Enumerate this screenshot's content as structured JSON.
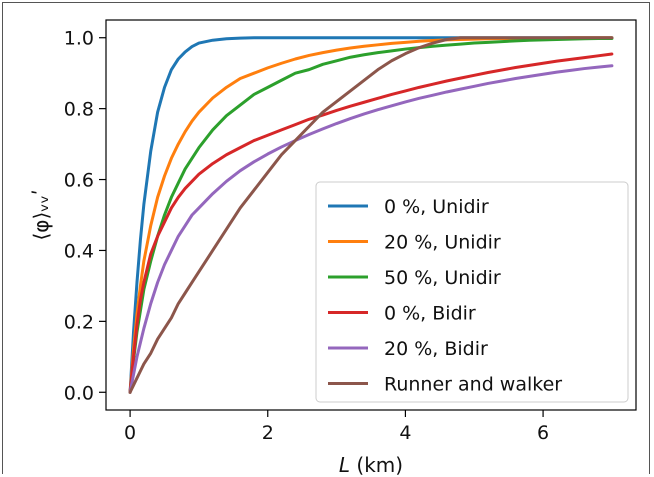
{
  "chart_data": {
    "type": "line",
    "title": "",
    "xlabel_var": "L",
    "xlabel_unit": " (km)",
    "ylabel": "⟨φ⟩ᵥᵥʹ",
    "xlim": [
      -0.35,
      7.35
    ],
    "ylim": [
      -0.05,
      1.05
    ],
    "xticks": [
      0,
      2,
      4,
      6
    ],
    "yticks": [
      0.0,
      0.2,
      0.4,
      0.6,
      0.8,
      1.0
    ],
    "xtick_labels": [
      "0",
      "2",
      "4",
      "6"
    ],
    "ytick_labels": [
      "0.0",
      "0.2",
      "0.4",
      "0.6",
      "0.8",
      "1.0"
    ],
    "grid": false,
    "legend_position": "lower-right",
    "x": [
      0,
      0.05,
      0.1,
      0.15,
      0.2,
      0.3,
      0.4,
      0.5,
      0.6,
      0.7,
      0.8,
      0.9,
      1.0,
      1.2,
      1.4,
      1.6,
      1.8,
      2.0,
      2.2,
      2.4,
      2.6,
      2.8,
      3.0,
      3.2,
      3.4,
      3.6,
      3.8,
      4.0,
      4.2,
      4.4,
      4.6,
      4.8,
      5.0,
      5.2,
      5.4,
      5.6,
      5.8,
      6.0,
      6.2,
      6.4,
      6.6,
      6.8,
      7.0
    ],
    "series": [
      {
        "name": "0 %, Unidir",
        "color": "#1f77b4",
        "values": [
          0.0,
          0.17,
          0.31,
          0.43,
          0.53,
          0.68,
          0.79,
          0.86,
          0.91,
          0.94,
          0.96,
          0.975,
          0.985,
          0.993,
          0.997,
          0.999,
          1.0,
          1.0,
          1.0,
          1.0,
          1.0,
          1.0,
          1.0,
          1.0,
          1.0,
          1.0,
          1.0,
          1.0,
          1.0,
          1.0,
          1.0,
          1.0,
          1.0,
          1.0,
          1.0,
          1.0,
          1.0,
          1.0,
          1.0,
          1.0,
          1.0,
          1.0,
          1.0
        ]
      },
      {
        "name": "20 %, Unidir",
        "color": "#ff7f0e",
        "values": [
          0.0,
          0.12,
          0.22,
          0.3,
          0.37,
          0.47,
          0.55,
          0.61,
          0.66,
          0.7,
          0.735,
          0.765,
          0.79,
          0.83,
          0.86,
          0.885,
          0.9,
          0.915,
          0.928,
          0.94,
          0.95,
          0.958,
          0.965,
          0.971,
          0.976,
          0.98,
          0.984,
          0.987,
          0.99,
          0.992,
          0.994,
          0.995,
          0.996,
          0.997,
          0.998,
          0.998,
          0.999,
          0.999,
          0.999,
          1.0,
          1.0,
          1.0,
          1.0
        ]
      },
      {
        "name": "50 %, Unidir",
        "color": "#2ca02c",
        "values": [
          0.0,
          0.09,
          0.17,
          0.23,
          0.29,
          0.37,
          0.44,
          0.5,
          0.55,
          0.59,
          0.63,
          0.66,
          0.69,
          0.74,
          0.78,
          0.81,
          0.84,
          0.86,
          0.88,
          0.9,
          0.91,
          0.925,
          0.935,
          0.945,
          0.952,
          0.958,
          0.963,
          0.968,
          0.972,
          0.976,
          0.979,
          0.982,
          0.985,
          0.987,
          0.989,
          0.991,
          0.993,
          0.994,
          0.995,
          0.996,
          0.997,
          0.998,
          0.998
        ]
      },
      {
        "name": "0 %, Bidir",
        "color": "#d62728",
        "values": [
          0.0,
          0.1,
          0.19,
          0.26,
          0.31,
          0.39,
          0.44,
          0.48,
          0.52,
          0.55,
          0.575,
          0.595,
          0.615,
          0.645,
          0.67,
          0.69,
          0.71,
          0.725,
          0.74,
          0.755,
          0.77,
          0.782,
          0.795,
          0.807,
          0.818,
          0.829,
          0.84,
          0.85,
          0.86,
          0.869,
          0.878,
          0.886,
          0.894,
          0.902,
          0.909,
          0.916,
          0.922,
          0.928,
          0.934,
          0.939,
          0.944,
          0.949,
          0.954
        ]
      },
      {
        "name": "20 %, Bidir",
        "color": "#9467bd",
        "values": [
          0.0,
          0.05,
          0.1,
          0.14,
          0.18,
          0.25,
          0.31,
          0.36,
          0.4,
          0.44,
          0.47,
          0.5,
          0.52,
          0.56,
          0.595,
          0.625,
          0.65,
          0.672,
          0.692,
          0.71,
          0.727,
          0.743,
          0.758,
          0.772,
          0.785,
          0.797,
          0.808,
          0.819,
          0.829,
          0.838,
          0.847,
          0.855,
          0.863,
          0.871,
          0.878,
          0.885,
          0.891,
          0.897,
          0.903,
          0.908,
          0.913,
          0.917,
          0.921
        ]
      },
      {
        "name": "Runner and walker",
        "color": "#8c564b",
        "values": [
          0.0,
          0.02,
          0.04,
          0.06,
          0.08,
          0.11,
          0.15,
          0.18,
          0.21,
          0.25,
          0.28,
          0.31,
          0.34,
          0.4,
          0.46,
          0.52,
          0.57,
          0.62,
          0.67,
          0.71,
          0.75,
          0.79,
          0.82,
          0.85,
          0.88,
          0.91,
          0.935,
          0.955,
          0.972,
          0.985,
          0.995,
          1.0,
          1.0,
          1.0,
          1.0,
          1.0,
          1.0,
          1.0,
          1.0,
          1.0,
          1.0,
          1.0,
          1.0
        ]
      }
    ]
  }
}
